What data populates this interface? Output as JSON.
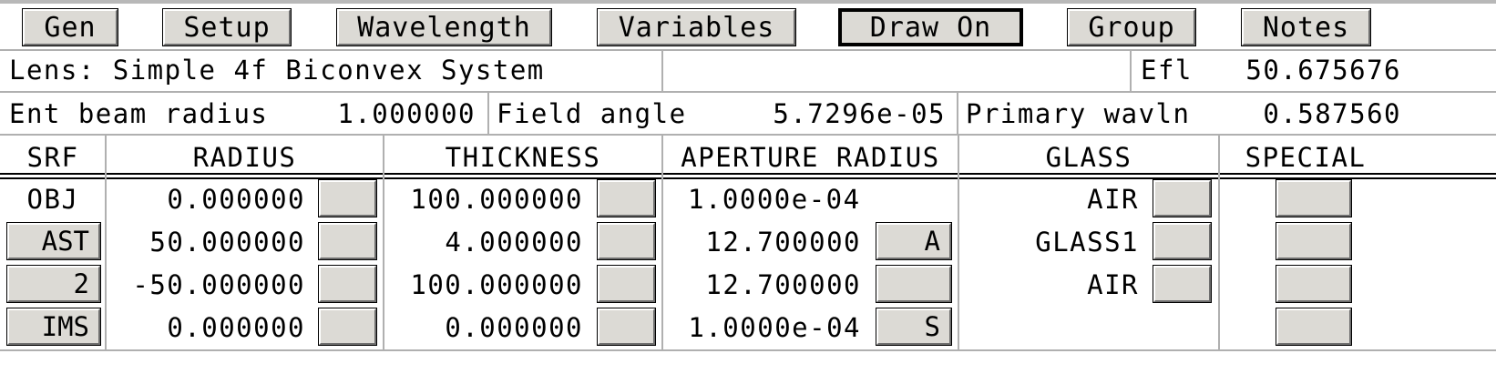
{
  "menu": [
    {
      "label": "Gen",
      "active": false
    },
    {
      "label": "Setup",
      "active": false
    },
    {
      "label": "Wavelength",
      "active": false
    },
    {
      "label": "Variables",
      "active": false
    },
    {
      "label": "Draw On",
      "active": true
    },
    {
      "label": "Group",
      "active": false
    },
    {
      "label": "Notes",
      "active": false
    }
  ],
  "lens": {
    "name": "Lens: Simple 4f Biconvex System",
    "efl_label": "Efl",
    "efl_value": "50.675676"
  },
  "params": {
    "ent_beam_label": "Ent beam radius",
    "ent_beam_value": "1.000000",
    "field_angle_label": "Field angle",
    "field_angle_value": "5.7296e-05",
    "wavln_label": "Primary wavln",
    "wavln_value": "0.587560"
  },
  "table": {
    "headers": {
      "srf": "SRF",
      "radius": "RADIUS",
      "thickness": "THICKNESS",
      "aperture": "APERTURE RADIUS",
      "glass": "GLASS",
      "special": "SPECIAL"
    },
    "rows": [
      {
        "srf": "OBJ",
        "srf_is_button": false,
        "radius": "0.000000",
        "thickness": "100.000000",
        "aperture": "1.0000e-04",
        "aperture_btn": null,
        "glass": "AIR",
        "glass_btn": true
      },
      {
        "srf": "AST",
        "srf_is_button": true,
        "radius": "50.000000",
        "thickness": "4.000000",
        "aperture": "12.700000",
        "aperture_btn": "A",
        "glass": "GLASS1",
        "glass_btn": true
      },
      {
        "srf": "2",
        "srf_is_button": true,
        "radius": "-50.000000",
        "thickness": "100.000000",
        "aperture": "12.700000",
        "aperture_btn": "",
        "glass": "AIR",
        "glass_btn": true
      },
      {
        "srf": "IMS",
        "srf_is_button": true,
        "radius": "0.000000",
        "thickness": "0.000000",
        "aperture": "1.0000e-04",
        "aperture_btn": "S",
        "glass": "",
        "glass_btn": false
      }
    ]
  }
}
